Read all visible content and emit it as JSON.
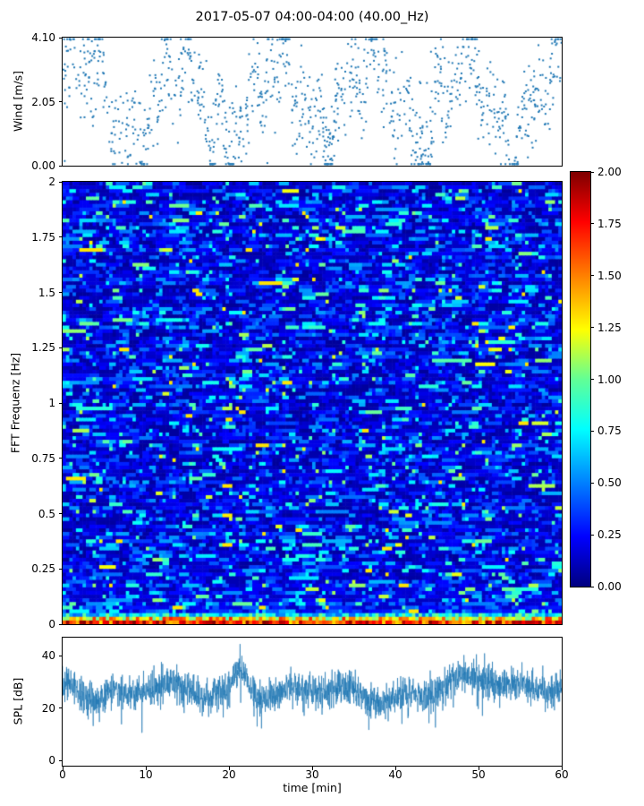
{
  "figure": {
    "title": "2017-05-07 04:00-04:00 (40.00_Hz)",
    "background": "#ffffff",
    "series_color": "#1f77b4"
  },
  "wind": {
    "ylabel": "Wind [m/s]",
    "ytick_labels": [
      "4.10",
      "2.05",
      "0.00"
    ]
  },
  "spectrogram": {
    "ylabel": "FFT Frequenz [Hz]",
    "ytick_labels": [
      "2",
      "1.75",
      "1.5",
      "1.25",
      "1",
      "0.75",
      "0.5",
      "0.25",
      "0"
    ]
  },
  "colorbar": {
    "colormap": "jet",
    "tick_labels": [
      "2.00",
      "1.75",
      "1.50",
      "1.25",
      "1.00",
      "0.75",
      "0.50",
      "0.25",
      "0.00"
    ]
  },
  "spl": {
    "ylabel": "SPL [dB]",
    "xlabel": "time [min]",
    "ytick_labels": [
      "40",
      "20",
      "0"
    ],
    "xtick_labels": [
      "0",
      "10",
      "20",
      "30",
      "40",
      "50",
      "60"
    ]
  },
  "chart_data": [
    {
      "type": "scatter",
      "name": "wind",
      "title": "2017-05-07 04:00-04:00 (40.00_Hz)",
      "ylabel": "Wind [m/s]",
      "xlim": [
        0,
        60
      ],
      "ylim": [
        0.0,
        4.1
      ],
      "ytick_values": [
        0.0,
        2.05,
        4.1
      ],
      "n_points": 1150,
      "marker": "dot",
      "marker_color": "#1f77b4",
      "summary": "dense wind-speed scatter fluctuating over the full 0-4.1 m/s range across 60 minutes, with wandering clusters near 3-3.5 m/s and intermittent lulls near 0.5 m/s",
      "seed": 7
    },
    {
      "type": "heatmap",
      "name": "spectrogram",
      "ylabel": "FFT Frequenz [Hz]",
      "xlim": [
        0,
        60
      ],
      "ylim": [
        0,
        2
      ],
      "zlim": [
        0.0,
        2.0
      ],
      "colormap": "jet",
      "grid": {
        "cols": 150,
        "rows": 120
      },
      "legend_position": "right-colorbar",
      "summary": "broadband noise field mostly 0-0.6 (blue) with scattered cyan/green speckle streaks; strong energy 1.0-2.0 (yellow/orange/red to dark red) concentrated in a thin band below ~0.05 Hz at the bottom edge",
      "seed": 11
    },
    {
      "type": "line",
      "name": "spl",
      "ylabel": "SPL [dB]",
      "xlabel": "time [min]",
      "xlim": [
        0,
        60
      ],
      "ylim": [
        -2,
        47
      ],
      "ytick_values": [
        0,
        20,
        40
      ],
      "xtick_values": [
        0,
        10,
        20,
        30,
        40,
        50,
        60
      ],
      "line_color": "#1f77b4",
      "baseline_db": 26,
      "noise_db": 5,
      "peaks": [
        {
          "x": 21.5,
          "y": 46
        },
        {
          "x": 48,
          "y": 40
        }
      ],
      "summary": "noisy sound-pressure-level trace oscillating around 25-32 dB with downward spikes to ~10 dB, a burst reaching ~46 dB near minute 21-22, and elevated levels ~35 dB after minute 47",
      "seed": 13
    }
  ]
}
